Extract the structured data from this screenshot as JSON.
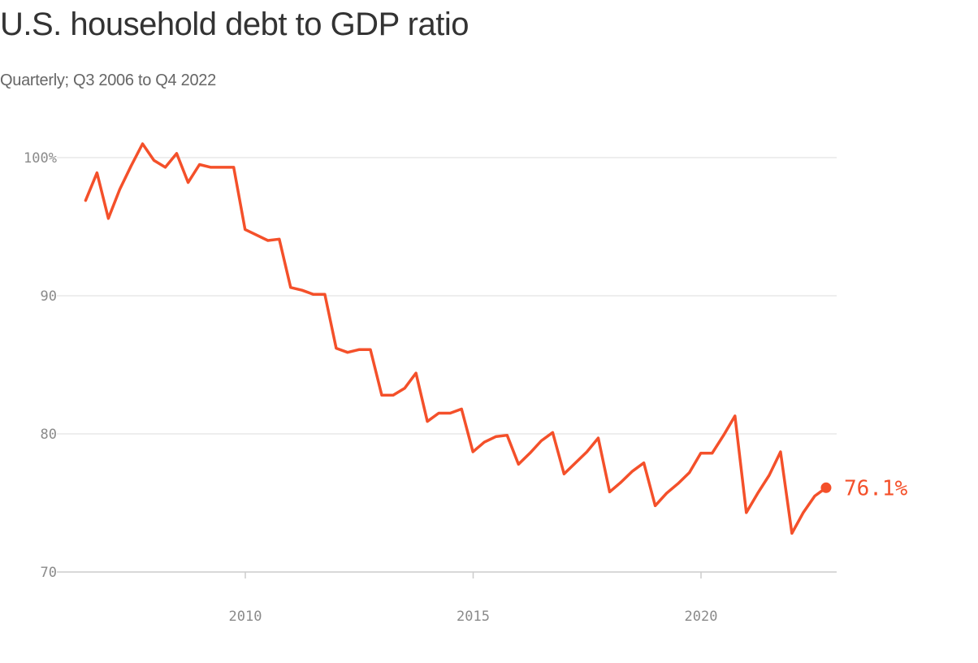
{
  "title": "U.S. household debt to GDP ratio",
  "subtitle": "Quarterly; Q3 2006 to Q4 2022",
  "colors": {
    "line": "#f4502a",
    "grid": "#dddddd",
    "axis": "#cccccc",
    "tick_text": "#8a8a8a"
  },
  "chart_data": {
    "type": "line",
    "title": "U.S. household debt to GDP ratio",
    "subtitle": "Quarterly; Q3 2006 to Q4 2022",
    "xlabel": "",
    "ylabel": "",
    "xlim": [
      2006.4,
      2023.2
    ],
    "ylim": [
      70,
      101.5
    ],
    "y_ticks": [
      70,
      80,
      90,
      100
    ],
    "y_tick_labels": [
      "70",
      "80",
      "90",
      "100%"
    ],
    "x_ticks": [
      2010,
      2015,
      2020
    ],
    "x_tick_labels": [
      "2010",
      "2015",
      "2020"
    ],
    "grid": "horizontal",
    "end_label": "76.1%",
    "series": [
      {
        "x": [
          "2006 Q3",
          "2006 Q4",
          "2007 Q1",
          "2007 Q2",
          "2007 Q3",
          "2007 Q4",
          "2008 Q1",
          "2008 Q2",
          "2008 Q3",
          "2008 Q4",
          "2009 Q1",
          "2009 Q2",
          "2009 Q3",
          "2009 Q4",
          "2010 Q1",
          "2010 Q2",
          "2010 Q3",
          "2010 Q4",
          "2011 Q1",
          "2011 Q2",
          "2011 Q3",
          "2011 Q4",
          "2012 Q1",
          "2012 Q2",
          "2012 Q3",
          "2012 Q4",
          "2013 Q1",
          "2013 Q2",
          "2013 Q3",
          "2013 Q4",
          "2014 Q1",
          "2014 Q2",
          "2014 Q3",
          "2014 Q4",
          "2015 Q1",
          "2015 Q2",
          "2015 Q3",
          "2015 Q4",
          "2016 Q1",
          "2016 Q2",
          "2016 Q3",
          "2016 Q4",
          "2017 Q1",
          "2017 Q2",
          "2017 Q3",
          "2017 Q4",
          "2018 Q1",
          "2018 Q2",
          "2018 Q3",
          "2018 Q4",
          "2019 Q1",
          "2019 Q2",
          "2019 Q3",
          "2019 Q4",
          "2020 Q1",
          "2020 Q2",
          "2020 Q3",
          "2020 Q4",
          "2021 Q1",
          "2021 Q2",
          "2021 Q3",
          "2021 Q4",
          "2022 Q1",
          "2022 Q2",
          "2022 Q3",
          "2022 Q4"
        ],
        "values": [
          96.9,
          98.9,
          95.6,
          97.7,
          99.4,
          101.0,
          99.8,
          99.3,
          100.3,
          98.2,
          99.5,
          99.3,
          99.3,
          99.3,
          94.8,
          94.4,
          94.0,
          94.1,
          90.6,
          90.4,
          90.1,
          90.1,
          86.2,
          85.9,
          86.1,
          86.1,
          82.8,
          82.8,
          83.3,
          84.4,
          80.9,
          81.5,
          81.5,
          81.8,
          78.7,
          79.4,
          79.8,
          79.9,
          77.8,
          78.6,
          79.5,
          80.1,
          77.1,
          77.9,
          78.7,
          79.7,
          75.8,
          76.5,
          77.3,
          77.9,
          74.8,
          75.7,
          76.4,
          77.2,
          78.6,
          78.6,
          79.9,
          81.3,
          74.3,
          75.7,
          77.0,
          78.7,
          72.8,
          74.3,
          75.5,
          76.1
        ]
      }
    ]
  }
}
